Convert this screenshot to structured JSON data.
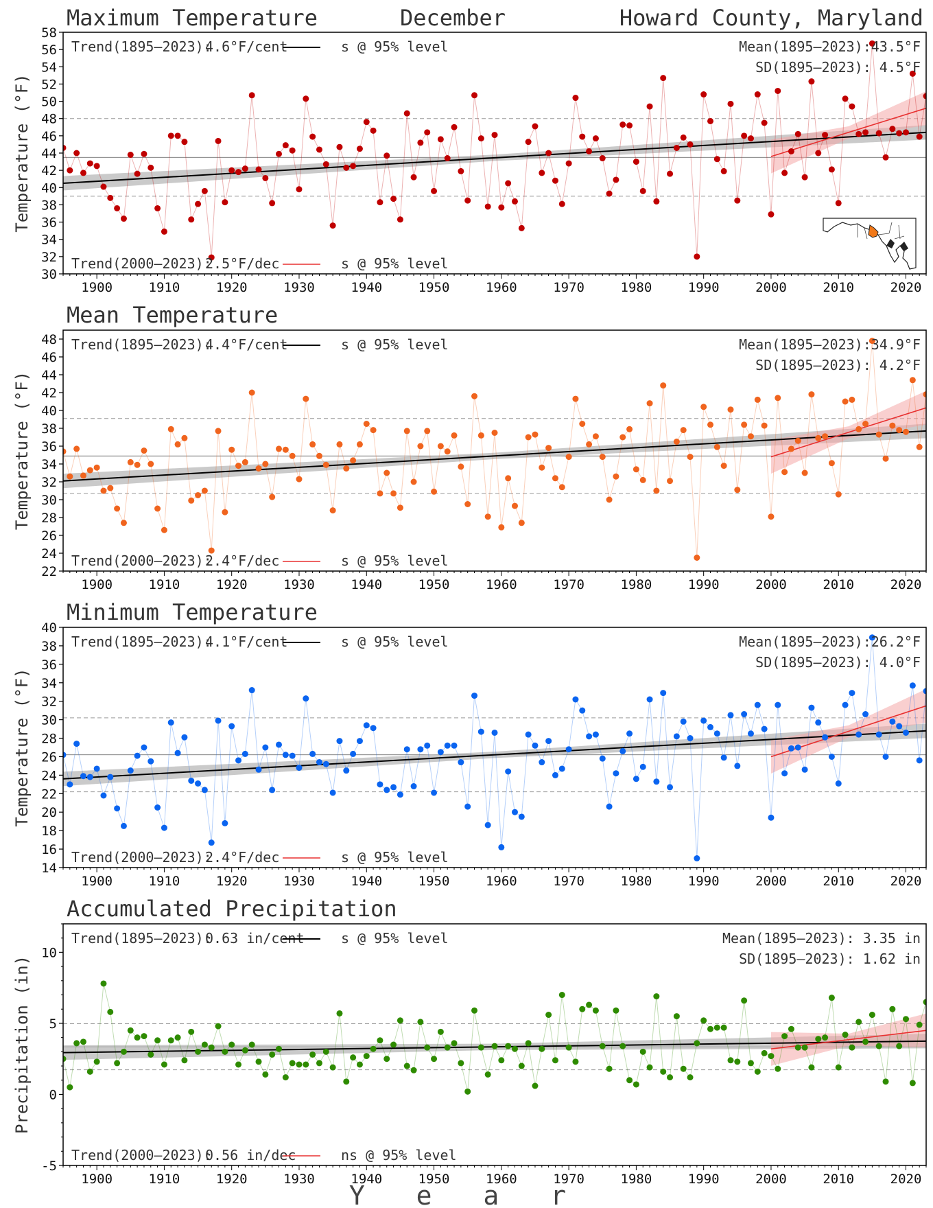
{
  "header": {
    "left": "Maximum Temperature",
    "center": "December",
    "right": "Howard County, Maryland"
  },
  "xlabel": "Y e a r",
  "colors": {
    "max": "#c00000",
    "mean": "#f0641e",
    "min": "#0a64f0",
    "precip": "#2e8b00",
    "trend_long": "#000000",
    "trend_short": "#e83030",
    "band_long": "#b4b4b4",
    "band_short": "#f4a8a8"
  },
  "chart_data": [
    {
      "type": "scatter",
      "key": "max",
      "title": "Maximum Temperature",
      "ylabel": "Temperature (°F)",
      "xlim": [
        1895,
        2023
      ],
      "ylim": [
        30,
        58
      ],
      "yticks": [
        30,
        32,
        34,
        36,
        38,
        40,
        42,
        44,
        46,
        48,
        50,
        52,
        54,
        56,
        58
      ],
      "xticks": [
        1900,
        1910,
        1920,
        1930,
        1940,
        1950,
        1960,
        1970,
        1980,
        1990,
        2000,
        2010,
        2020
      ],
      "grid": false,
      "x_start": 1895,
      "mean": 43.5,
      "sd": 4.5,
      "trend_long": {
        "label": "Trend(1895–2023):",
        "value": "4.6°F/cent",
        "sig": "s @ 95% level",
        "start": [
          1895,
          40.5
        ],
        "end": [
          2023,
          46.4
        ]
      },
      "trend_short": {
        "label": "Trend(2000–2023):",
        "value": "2.5°F/dec",
        "sig": "s @ 95% level",
        "start": [
          2000,
          43.6
        ],
        "end": [
          2023,
          49.2
        ]
      },
      "mean_text": "Mean(1895–2023):43.5°F",
      "sd_text": "SD(1895–2023): 4.5°F",
      "values": [
        44.6,
        42.0,
        44.0,
        41.7,
        42.8,
        42.5,
        40.1,
        38.8,
        37.6,
        36.4,
        43.8,
        41.6,
        43.9,
        42.3,
        37.6,
        34.9,
        46.0,
        46.0,
        45.3,
        36.3,
        38.1,
        39.6,
        31.9,
        45.4,
        38.3,
        42.0,
        41.8,
        42.2,
        50.7,
        42.1,
        41.1,
        38.2,
        43.9,
        44.9,
        44.3,
        39.8,
        50.3,
        45.9,
        44.4,
        42.7,
        35.6,
        44.7,
        42.3,
        42.5,
        44.5,
        47.6,
        46.6,
        38.3,
        43.7,
        38.7,
        36.3,
        48.6,
        41.2,
        45.2,
        46.4,
        39.6,
        45.6,
        43.4,
        47.0,
        41.9,
        38.5,
        50.7,
        45.7,
        37.8,
        46.1,
        37.7,
        40.5,
        38.4,
        35.3,
        45.3,
        47.1,
        41.7,
        44.0,
        40.8,
        38.1,
        42.8,
        50.4,
        45.9,
        44.2,
        45.7,
        43.4,
        39.3,
        40.9,
        47.3,
        47.2,
        43.0,
        39.6,
        49.4,
        38.4,
        52.7,
        41.6,
        44.6,
        45.8,
        45.0,
        32.0,
        50.8,
        47.7,
        43.3,
        41.9,
        49.7,
        38.5,
        46.0,
        45.7,
        50.8,
        47.5,
        36.9,
        51.2,
        41.7,
        44.2,
        46.2,
        41.2,
        52.3,
        44.0,
        46.1,
        42.1,
        38.2,
        50.3,
        49.4,
        46.2,
        46.4,
        56.7,
        46.3,
        43.5,
        46.8,
        46.3,
        46.4,
        53.2,
        45.9,
        50.6
      ]
    },
    {
      "type": "scatter",
      "key": "mean",
      "title": "Mean Temperature",
      "ylabel": "Temperature (°F)",
      "xlim": [
        1895,
        2023
      ],
      "ylim": [
        22,
        49
      ],
      "yticks": [
        22,
        24,
        26,
        28,
        30,
        32,
        34,
        36,
        38,
        40,
        42,
        44,
        46,
        48
      ],
      "xticks": [
        1900,
        1910,
        1920,
        1930,
        1940,
        1950,
        1960,
        1970,
        1980,
        1990,
        2000,
        2010,
        2020
      ],
      "grid": false,
      "x_start": 1895,
      "mean": 34.9,
      "sd": 4.2,
      "trend_long": {
        "label": "Trend(1895–2023):",
        "value": "4.4°F/cent",
        "sig": "s @ 95% level",
        "start": [
          1895,
          32.1
        ],
        "end": [
          2023,
          37.7
        ]
      },
      "trend_short": {
        "label": "Trend(2000–2023):",
        "value": "2.4°F/dec",
        "sig": "s @ 95% level",
        "start": [
          2000,
          34.8
        ],
        "end": [
          2023,
          40.3
        ]
      },
      "mean_text": "Mean(1895–2023):34.9°F",
      "sd_text": "SD(1895–2023): 4.2°F",
      "values": [
        35.4,
        32.6,
        35.7,
        32.7,
        33.3,
        33.6,
        31.0,
        31.3,
        29.0,
        27.4,
        34.2,
        33.9,
        35.5,
        34.0,
        29.0,
        26.6,
        37.9,
        36.2,
        36.9,
        29.9,
        30.5,
        31.0,
        24.3,
        37.7,
        28.6,
        35.6,
        33.8,
        34.2,
        42.0,
        33.5,
        34.0,
        30.3,
        35.7,
        35.6,
        34.9,
        32.3,
        41.3,
        36.2,
        34.9,
        33.9,
        28.8,
        36.2,
        33.5,
        34.4,
        36.2,
        38.5,
        37.8,
        30.7,
        33.0,
        30.7,
        29.1,
        37.7,
        32.0,
        36.0,
        37.7,
        30.9,
        36.0,
        35.4,
        37.2,
        33.7,
        29.5,
        41.6,
        37.2,
        28.1,
        37.5,
        26.9,
        32.4,
        29.3,
        27.4,
        37.0,
        37.3,
        33.6,
        35.8,
        32.4,
        31.4,
        34.8,
        41.3,
        38.5,
        36.2,
        37.1,
        34.8,
        30.0,
        32.6,
        37.0,
        37.9,
        33.4,
        32.2,
        40.8,
        31.0,
        42.8,
        32.1,
        36.5,
        37.8,
        34.8,
        23.5,
        40.4,
        38.4,
        35.9,
        33.8,
        40.1,
        31.1,
        38.4,
        37.1,
        41.2,
        38.3,
        28.1,
        41.4,
        33.1,
        35.7,
        36.6,
        33.0,
        41.8,
        36.9,
        37.1,
        34.1,
        30.6,
        41.0,
        41.2,
        37.9,
        38.5,
        47.8,
        37.3,
        34.6,
        38.3,
        37.8,
        37.6,
        43.4,
        35.9,
        41.8
      ]
    },
    {
      "type": "scatter",
      "key": "min",
      "title": "Minimum Temperature",
      "ylabel": "Temperature (°F)",
      "xlim": [
        1895,
        2023
      ],
      "ylim": [
        14,
        40
      ],
      "yticks": [
        14,
        16,
        18,
        20,
        22,
        24,
        26,
        28,
        30,
        32,
        34,
        36,
        38,
        40
      ],
      "xticks": [
        1900,
        1910,
        1920,
        1930,
        1940,
        1950,
        1960,
        1970,
        1980,
        1990,
        2000,
        2010,
        2020
      ],
      "grid": false,
      "x_start": 1895,
      "mean": 26.2,
      "sd": 4.0,
      "trend_long": {
        "label": "Trend(1895–2023):",
        "value": "4.1°F/cent",
        "sig": "s @ 95% level",
        "start": [
          1895,
          23.6
        ],
        "end": [
          2023,
          28.8
        ]
      },
      "trend_short": {
        "label": "Trend(2000–2023):",
        "value": "2.4°F/dec",
        "sig": "s @ 95% level",
        "start": [
          2000,
          26.0
        ],
        "end": [
          2023,
          31.5
        ]
      },
      "mean_text": "Mean(1895–2023):26.2°F",
      "sd_text": "SD(1895–2023): 4.0°F",
      "values": [
        26.2,
        23.0,
        27.4,
        23.9,
        23.8,
        24.7,
        21.8,
        23.8,
        20.4,
        18.5,
        24.5,
        26.1,
        27.0,
        25.5,
        20.5,
        18.3,
        29.7,
        26.4,
        28.1,
        23.4,
        23.1,
        22.4,
        16.7,
        29.9,
        18.8,
        29.3,
        25.6,
        26.3,
        33.2,
        24.6,
        27.0,
        22.4,
        27.3,
        26.2,
        26.1,
        24.8,
        32.3,
        26.3,
        25.4,
        25.2,
        22.1,
        27.7,
        24.5,
        26.3,
        27.7,
        29.4,
        29.1,
        23.0,
        22.4,
        22.7,
        21.9,
        26.8,
        22.8,
        26.8,
        27.2,
        22.1,
        26.5,
        27.2,
        27.2,
        25.4,
        20.6,
        32.6,
        28.7,
        18.6,
        28.6,
        16.2,
        24.4,
        20.0,
        19.5,
        28.4,
        27.2,
        25.4,
        27.7,
        24.0,
        24.7,
        26.8,
        32.2,
        31.0,
        28.2,
        28.4,
        25.8,
        20.6,
        24.2,
        26.6,
        28.5,
        23.6,
        24.9,
        32.2,
        23.3,
        32.9,
        22.7,
        28.2,
        29.8,
        28.0,
        15.0,
        29.9,
        29.2,
        28.5,
        25.9,
        30.5,
        25.0,
        30.6,
        28.5,
        31.6,
        29.0,
        19.4,
        31.6,
        24.2,
        26.9,
        27.0,
        24.6,
        31.3,
        29.7,
        28.1,
        26.0,
        23.1,
        31.6,
        32.9,
        28.4,
        30.6,
        38.9,
        28.4,
        26.0,
        29.8,
        29.3,
        28.6,
        33.7,
        25.6,
        33.1
      ]
    },
    {
      "type": "scatter",
      "key": "precip",
      "title": "Accumulated Precipitation",
      "ylabel": "Precipitation (in)",
      "xlim": [
        1895,
        2023
      ],
      "ylim": [
        -5,
        12
      ],
      "yticks": [
        -5,
        0,
        5,
        10
      ],
      "xticks": [
        1900,
        1910,
        1920,
        1930,
        1940,
        1950,
        1960,
        1970,
        1980,
        1990,
        2000,
        2010,
        2020
      ],
      "grid": false,
      "x_start": 1895,
      "mean": 3.35,
      "sd": 1.62,
      "trend_long": {
        "label": "Trend(1895–2023):",
        "value": "0.63 in/cent",
        "sig": "s @ 95% level",
        "start": [
          1895,
          2.94
        ],
        "end": [
          2023,
          3.75
        ]
      },
      "trend_short": {
        "label": "Trend(2000–2023):",
        "value": "0.56 in/dec",
        "sig": "ns @ 95% level",
        "start": [
          2000,
          3.2
        ],
        "end": [
          2023,
          4.5
        ]
      },
      "mean_text": "Mean(1895–2023): 3.35 in",
      "sd_text": "SD(1895–2023): 1.62 in",
      "values": [
        2.5,
        0.5,
        3.6,
        3.7,
        1.6,
        2.3,
        7.8,
        5.8,
        2.2,
        3.0,
        4.5,
        4.0,
        4.1,
        2.8,
        3.8,
        2.1,
        3.8,
        4.0,
        2.4,
        4.4,
        3.0,
        3.5,
        3.3,
        4.8,
        3.0,
        3.5,
        2.1,
        3.1,
        3.5,
        2.3,
        1.4,
        2.8,
        3.2,
        1.2,
        2.2,
        2.1,
        2.1,
        2.8,
        2.2,
        3.0,
        1.9,
        5.7,
        0.9,
        2.6,
        2.1,
        2.7,
        3.2,
        3.8,
        2.5,
        3.5,
        5.2,
        2.0,
        1.7,
        5.1,
        3.3,
        2.5,
        4.4,
        3.3,
        3.6,
        2.2,
        0.2,
        5.9,
        3.3,
        1.4,
        3.4,
        2.4,
        3.4,
        3.2,
        2.0,
        3.6,
        0.6,
        3.2,
        5.6,
        2.4,
        7.0,
        3.3,
        2.3,
        6.0,
        6.3,
        5.9,
        3.4,
        1.8,
        5.9,
        3.4,
        1.0,
        0.7,
        3.0,
        1.9,
        6.9,
        1.6,
        1.2,
        5.5,
        1.8,
        1.2,
        3.6,
        5.2,
        4.6,
        4.7,
        4.7,
        2.4,
        2.3,
        6.6,
        2.2,
        1.6,
        2.9,
        2.7,
        1.8,
        4.1,
        4.6,
        3.3,
        3.3,
        1.9,
        3.9,
        4.0,
        6.8,
        1.9,
        4.2,
        3.3,
        5.1,
        3.7,
        5.6,
        3.4,
        0.9,
        6.0,
        3.4,
        5.3,
        0.8,
        4.9,
        6.5
      ]
    }
  ]
}
